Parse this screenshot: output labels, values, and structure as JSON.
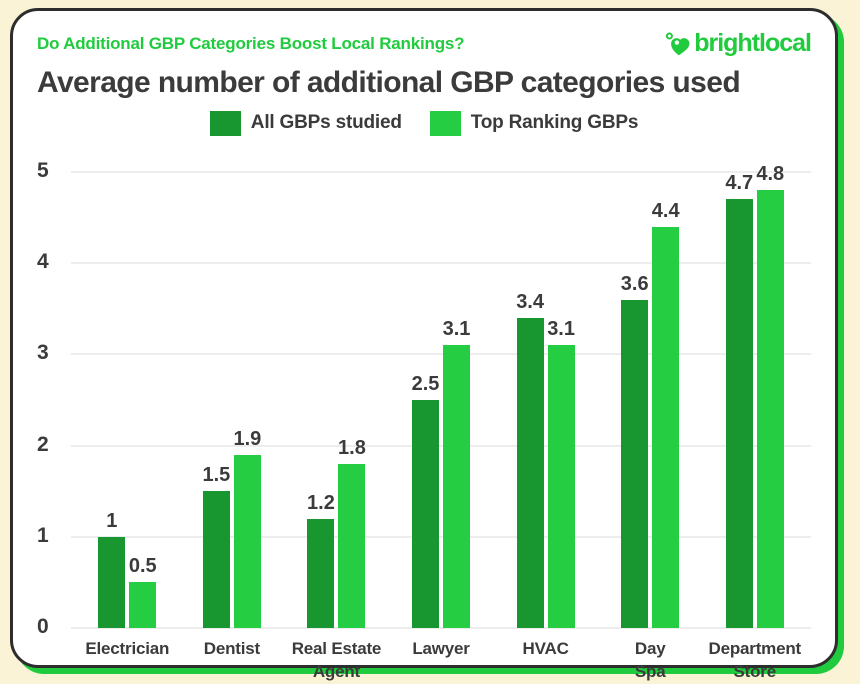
{
  "page": {
    "background_color": "#FBF3D6",
    "card_color": "#FFFFFF",
    "card_border_color": "#2D2D2D",
    "accent_green": "#21CB3E",
    "text_color": "#3B3B3B",
    "gridline_color": "#EDEDED"
  },
  "header": {
    "eyebrow": "Do Additional GBP Categories Boost Local Rankings?",
    "logo_text": "brightlocal",
    "logo_icon": "map-pin-heart-icon"
  },
  "title": "Average number of additional GBP categories used",
  "legend": [
    {
      "label": "All GBPs studied",
      "color": "#18962F"
    },
    {
      "label": "Top Ranking GBPs",
      "color": "#25CD43"
    }
  ],
  "chart_data": {
    "type": "bar",
    "title": "Average number of additional GBP categories used",
    "categories": [
      "Electrician",
      "Dentist",
      "Real Estate\nAgent",
      "Lawyer",
      "HVAC",
      "Day\nSpa",
      "Department\nStore"
    ],
    "series": [
      {
        "name": "All GBPs studied",
        "color": "#18962F",
        "values": [
          1,
          1.5,
          1.2,
          2.5,
          3.4,
          3.6,
          4.7
        ]
      },
      {
        "name": "Top Ranking GBPs",
        "color": "#25CD43",
        "values": [
          0.5,
          1.9,
          1.8,
          3.1,
          3.1,
          4.4,
          4.8
        ]
      }
    ],
    "xlabel": "",
    "ylabel": "",
    "ylim": [
      0,
      5
    ],
    "y_ticks": [
      0,
      1,
      2,
      3,
      4,
      5
    ],
    "grid": true,
    "legend_position": "top",
    "value_labels_shown": true
  }
}
